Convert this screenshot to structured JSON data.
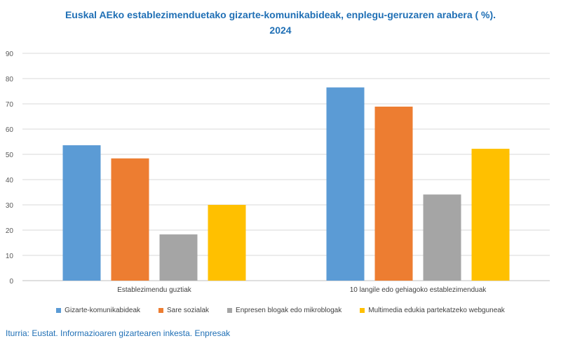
{
  "chart_data": {
    "type": "bar",
    "title_line1": "Euskal AEko establezimenduetako gizarte-komunikabideak, enplegu-geruzaren arabera ( %).",
    "title_line2": "2024",
    "categories": [
      "Establezimendu guztiak",
      "10 langile edo gehiagoko establezimenduak"
    ],
    "series": [
      {
        "name": "Gizarte-komunikabideak",
        "color": "#5b9bd5",
        "values": [
          53.6,
          76.5
        ]
      },
      {
        "name": "Sare sozialak",
        "color": "#ed7d31",
        "values": [
          48.4,
          68.9
        ]
      },
      {
        "name": "Enpresen blogak edo mikroblogak",
        "color": "#a5a5a5",
        "values": [
          18.3,
          34.1
        ]
      },
      {
        "name": "Multimedia edukia partekatzeko webguneak",
        "color": "#ffc000",
        "values": [
          30.0,
          52.2
        ]
      }
    ],
    "ylim": [
      0,
      90
    ],
    "yticks": [
      0,
      10,
      20,
      30,
      40,
      50,
      60,
      70,
      80,
      90
    ],
    "xlabel": "",
    "ylabel": "",
    "grid": true,
    "legend": "bottom"
  },
  "source": "Iturria: Eustat. Informazioaren gizartearen inkesta. Enpresak"
}
